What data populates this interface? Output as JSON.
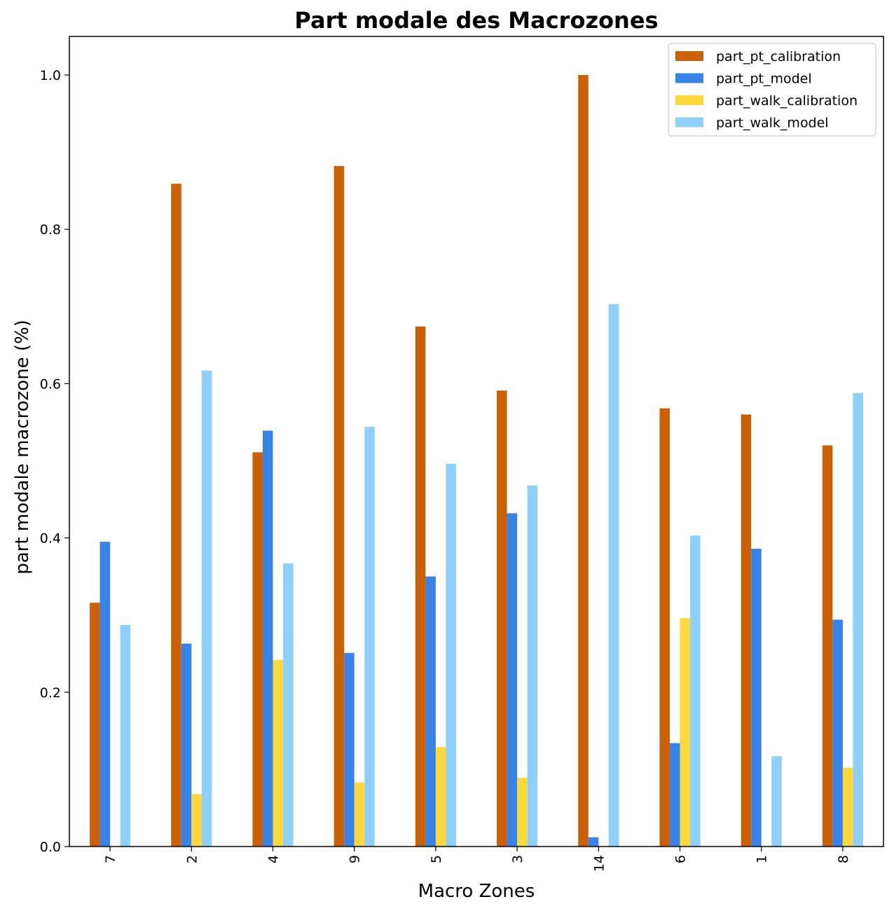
{
  "chart_data": {
    "type": "bar",
    "title": "Part modale des Macrozones",
    "xlabel": "Macro Zones",
    "ylabel": "part modale macrozone (%)",
    "categories": [
      "7",
      "2",
      "4",
      "9",
      "5",
      "3",
      "14",
      "6",
      "1",
      "8"
    ],
    "ylim": [
      0,
      1.05
    ],
    "yticks": [
      "0.0",
      "0.2",
      "0.4",
      "0.6",
      "0.8",
      "1.0"
    ],
    "grid": false,
    "legend_position": "top-right",
    "series": [
      {
        "name": "part_pt_calibration",
        "color": "#CC6006",
        "values": [
          0.316,
          0.859,
          0.511,
          0.882,
          0.674,
          0.591,
          1.0,
          0.568,
          0.56,
          0.52
        ]
      },
      {
        "name": "part_pt_model",
        "color": "#3783E8",
        "values": [
          0.395,
          0.263,
          0.539,
          0.251,
          0.35,
          0.432,
          0.012,
          0.134,
          0.386,
          0.294
        ]
      },
      {
        "name": "part_walk_calibration",
        "color": "#FCD83B",
        "values": [
          0.0,
          0.068,
          0.242,
          0.083,
          0.129,
          0.089,
          0.0,
          0.296,
          0.0,
          0.102
        ]
      },
      {
        "name": "part_walk_model",
        "color": "#8ED0FB",
        "values": [
          0.287,
          0.617,
          0.367,
          0.544,
          0.496,
          0.468,
          0.703,
          0.403,
          0.117,
          0.588
        ]
      }
    ]
  }
}
